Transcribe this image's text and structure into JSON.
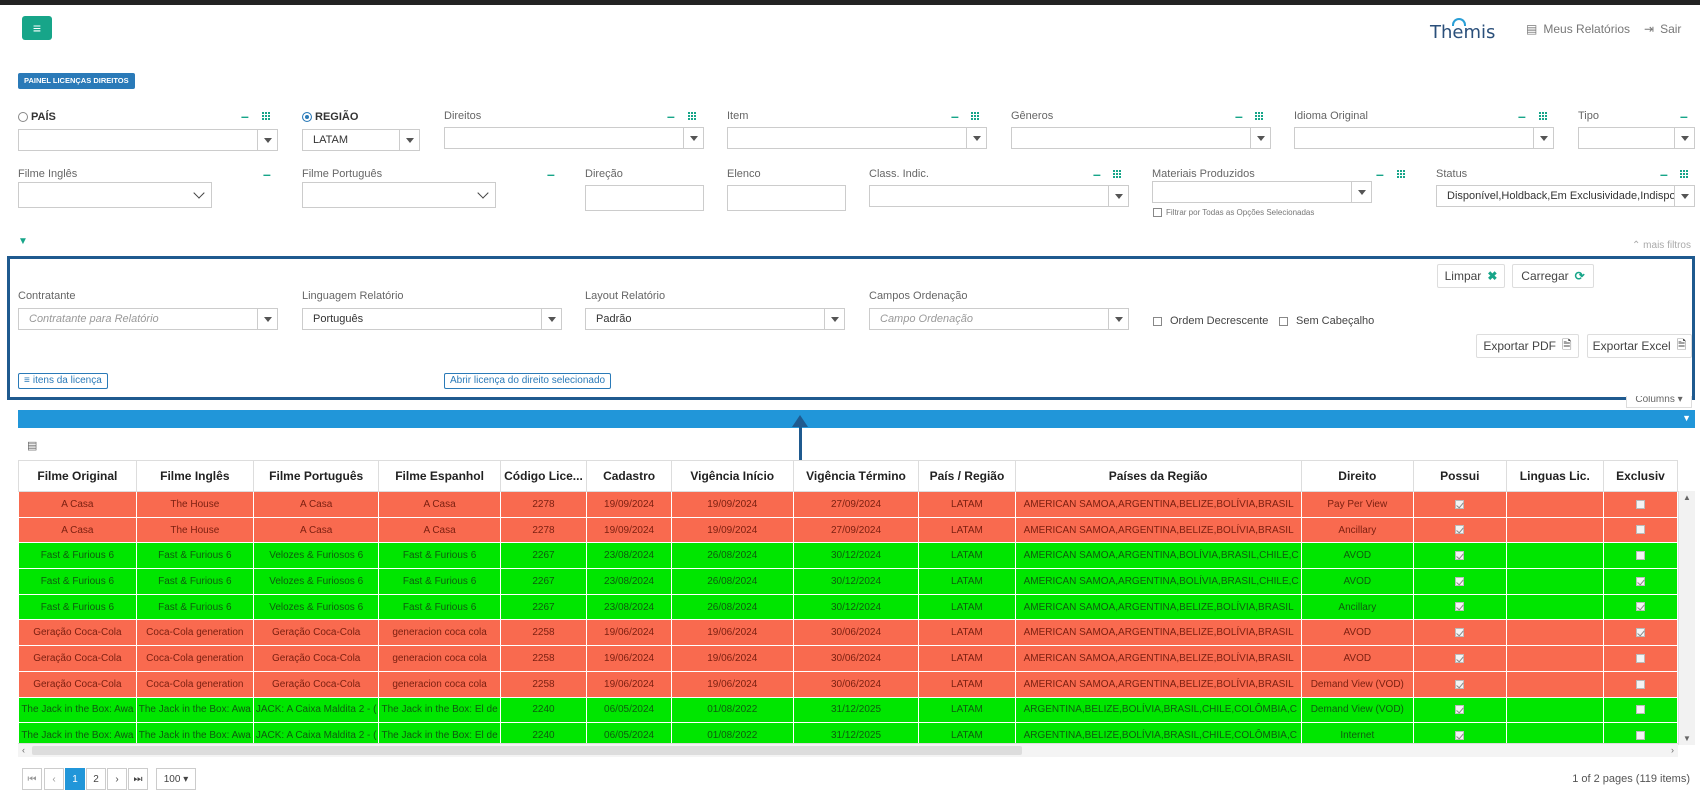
{
  "header": {
    "menu_icon": "hamburger-icon",
    "logo": "Themis",
    "links": [
      {
        "label": "Meus Relatórios",
        "icon": "report-icon"
      },
      {
        "label": "Sair",
        "icon": "logout-icon"
      }
    ]
  },
  "panel_badge": "PAINEL LICENÇAS DIREITOS",
  "filters_row1": {
    "pais": {
      "label": "PAÍS",
      "selected": false
    },
    "regiao": {
      "label": "REGIÃO",
      "selected": true,
      "value": "LATAM"
    },
    "direitos": "Direitos",
    "item": "Item",
    "generos": "Gêneros",
    "idioma": "Idioma Original",
    "tipo": "Tipo"
  },
  "filters_row2": {
    "filme_ingles": "Filme Inglês",
    "filme_portugues": "Filme Português",
    "direcao": "Direção",
    "elenco": "Elenco",
    "class_indic": "Class. Indic.",
    "materiais": "Materiais Produzidos",
    "filtrar_todas": "Filtrar por Todas as Opções Selecionadas",
    "status": {
      "label": "Status",
      "value": "Disponível,Holdback,Em Exclusividade,Indispo..."
    }
  },
  "mais_filtros": "mais filtros",
  "report": {
    "contratante": {
      "label": "Contratante",
      "placeholder": "Contratante para Relatório"
    },
    "linguagem": {
      "label": "Linguagem Relatório",
      "value": "Português"
    },
    "layout": {
      "label": "Layout Relatório",
      "value": "Padrão"
    },
    "campos": {
      "label": "Campos Ordenação",
      "placeholder": "Campo Ordenação"
    },
    "ordem_decrescente": "Ordem Decrescente",
    "sem_cabecalho": "Sem Cabeçalho",
    "limpar": "Limpar",
    "carregar": "Carregar",
    "exportar_pdf": "Exportar PDF",
    "exportar_excel": "Exportar Excel",
    "itens_licenca": "itens da licença",
    "abrir_licenca": "Abrir licença do direito selecionado"
  },
  "columns_btn": "Columns",
  "table": {
    "headers": [
      "Filme Original",
      "Filme Inglês",
      "Filme Português",
      "Filme Espanhol",
      "Código Lice...",
      "Cadastro",
      "Vigência Início",
      "Vigência Término",
      "País / Região",
      "Países da Região",
      "Direito",
      "Possui",
      "Linguas Lic.",
      "Exclusiv"
    ],
    "rows": [
      {
        "color": "red",
        "cells": [
          "A Casa",
          "The House",
          "A Casa",
          "A Casa",
          "2278",
          "19/09/2024",
          "19/09/2024",
          "27/09/2024",
          "LATAM",
          "AMERICAN SAMOA,ARGENTINA,BELIZE,BOLÍVIA,BRASIL",
          "Pay Per View"
        ],
        "possui": true,
        "excl": false
      },
      {
        "color": "red",
        "cells": [
          "A Casa",
          "The House",
          "A Casa",
          "A Casa",
          "2278",
          "19/09/2024",
          "19/09/2024",
          "27/09/2024",
          "LATAM",
          "AMERICAN SAMOA,ARGENTINA,BELIZE,BOLÍVIA,BRASIL",
          "Ancillary"
        ],
        "possui": true,
        "excl": false
      },
      {
        "color": "green",
        "cells": [
          "Fast & Furious 6",
          "Fast & Furious 6",
          "Velozes & Furiosos 6",
          "Fast & Furious 6",
          "2267",
          "23/08/2024",
          "26/08/2024",
          "30/12/2024",
          "LATAM",
          "AMERICAN SAMOA,ARGENTINA,BOLÍVIA,BRASIL,CHILE,C",
          "AVOD"
        ],
        "possui": true,
        "excl": false
      },
      {
        "color": "green",
        "cells": [
          "Fast & Furious 6",
          "Fast & Furious 6",
          "Velozes & Furiosos 6",
          "Fast & Furious 6",
          "2267",
          "23/08/2024",
          "26/08/2024",
          "30/12/2024",
          "LATAM",
          "AMERICAN SAMOA,ARGENTINA,BOLÍVIA,BRASIL,CHILE,C",
          "AVOD"
        ],
        "possui": true,
        "excl": true
      },
      {
        "color": "green",
        "cells": [
          "Fast & Furious 6",
          "Fast & Furious 6",
          "Velozes & Furiosos 6",
          "Fast & Furious 6",
          "2267",
          "23/08/2024",
          "26/08/2024",
          "30/12/2024",
          "LATAM",
          "AMERICAN SAMOA,ARGENTINA,BELIZE,BOLÍVIA,BRASIL",
          "Ancillary"
        ],
        "possui": true,
        "excl": true
      },
      {
        "color": "red",
        "cells": [
          "Geração Coca-Cola",
          "Coca-Cola generation",
          "Geração Coca-Cola",
          "generacion coca cola",
          "2258",
          "19/06/2024",
          "19/06/2024",
          "30/06/2024",
          "LATAM",
          "AMERICAN SAMOA,ARGENTINA,BELIZE,BOLÍVIA,BRASIL",
          "AVOD"
        ],
        "possui": true,
        "excl": true
      },
      {
        "color": "red",
        "cells": [
          "Geração Coca-Cola",
          "Coca-Cola generation",
          "Geração Coca-Cola",
          "generacion coca cola",
          "2258",
          "19/06/2024",
          "19/06/2024",
          "30/06/2024",
          "LATAM",
          "AMERICAN SAMOA,ARGENTINA,BELIZE,BOLÍVIA,BRASIL",
          "AVOD"
        ],
        "possui": true,
        "excl": false
      },
      {
        "color": "red",
        "cells": [
          "Geração Coca-Cola",
          "Coca-Cola generation",
          "Geração Coca-Cola",
          "generacion coca cola",
          "2258",
          "19/06/2024",
          "19/06/2024",
          "30/06/2024",
          "LATAM",
          "AMERICAN SAMOA,ARGENTINA,BELIZE,BOLÍVIA,BRASIL",
          "Demand View (VOD)"
        ],
        "possui": true,
        "excl": false
      },
      {
        "color": "green",
        "cells": [
          "The Jack in the Box: Awa",
          "The Jack in the Box: Awa",
          "JACK: A Caixa Maldita 2 - (",
          "The Jack in the Box: El de",
          "2240",
          "06/05/2024",
          "01/08/2022",
          "31/12/2025",
          "LATAM",
          "ARGENTINA,BELIZE,BOLÍVIA,BRASIL,CHILE,COLÔMBIA,C",
          "Demand View (VOD)"
        ],
        "possui": true,
        "excl": false
      },
      {
        "color": "green",
        "cells": [
          "The Jack in the Box: Awa",
          "The Jack in the Box: Awa",
          "JACK: A Caixa Maldita 2 - (",
          "The Jack in the Box: El de",
          "2240",
          "06/05/2024",
          "01/08/2022",
          "31/12/2025",
          "LATAM",
          "ARGENTINA,BELIZE,BOLÍVIA,BRASIL,CHILE,COLÔMBIA,C",
          "Internet"
        ],
        "possui": true,
        "excl": false
      }
    ]
  },
  "pager": {
    "pages": [
      "1",
      "2"
    ],
    "current": "1",
    "page_size": "100",
    "summary": "1 of 2 pages (119 items)"
  }
}
